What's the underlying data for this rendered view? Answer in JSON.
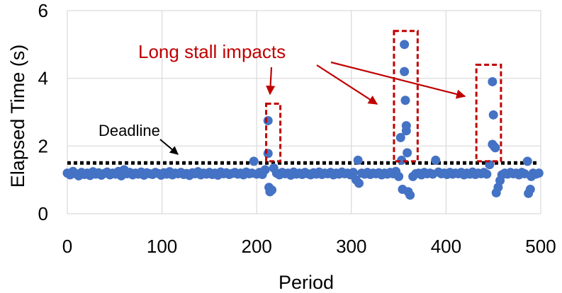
{
  "chart_data": {
    "type": "scatter",
    "title": "",
    "xlabel": "Period",
    "ylabel": "Elapsed Time (s)",
    "xlim": [
      0,
      500
    ],
    "ylim": [
      0,
      6
    ],
    "x_ticks": [
      "0",
      "100",
      "200",
      "300",
      "400",
      "500"
    ],
    "y_ticks": [
      "0",
      "2",
      "4",
      "6"
    ],
    "grid": true,
    "deadline": {
      "label": "Deadline",
      "value": 1.5
    },
    "stall_annotation": {
      "label": "Long stall impacts",
      "regions": [
        [
          210,
          225,
          1.55,
          3.25
        ],
        [
          345,
          370,
          1.55,
          5.4
        ],
        [
          432,
          458,
          1.55,
          4.4
        ]
      ]
    },
    "colors": {
      "points": "#4472c4",
      "annotation": "#c00000",
      "deadline": "#000000",
      "grid": "#d9d9d9"
    },
    "series": [
      {
        "values": [
          [
            0,
            1.2
          ],
          [
            3,
            1.15
          ],
          [
            6,
            1.25
          ],
          [
            9,
            1.18
          ],
          [
            12,
            1.12
          ],
          [
            15,
            1.22
          ],
          [
            18,
            1.16
          ],
          [
            21,
            1.2
          ],
          [
            24,
            1.13
          ],
          [
            27,
            1.24
          ],
          [
            30,
            1.17
          ],
          [
            33,
            1.21
          ],
          [
            36,
            1.14
          ],
          [
            39,
            1.19
          ],
          [
            42,
            1.23
          ],
          [
            45,
            1.15
          ],
          [
            48,
            1.2
          ],
          [
            51,
            1.17
          ],
          [
            54,
            1.25
          ],
          [
            57,
            1.12
          ],
          [
            60,
            1.3
          ],
          [
            63,
            1.18
          ],
          [
            66,
            1.22
          ],
          [
            69,
            1.15
          ],
          [
            72,
            1.2
          ],
          [
            75,
            1.17
          ],
          [
            78,
            1.23
          ],
          [
            81,
            1.14
          ],
          [
            84,
            1.21
          ],
          [
            87,
            1.18
          ],
          [
            90,
            1.16
          ],
          [
            93,
            1.22
          ],
          [
            96,
            1.19
          ],
          [
            99,
            1.14
          ],
          [
            102,
            1.21
          ],
          [
            105,
            1.17
          ],
          [
            108,
            1.24
          ],
          [
            111,
            1.15
          ],
          [
            114,
            1.2
          ],
          [
            117,
            1.18
          ],
          [
            120,
            1.22
          ],
          [
            123,
            1.16
          ],
          [
            126,
            1.19
          ],
          [
            129,
            1.13
          ],
          [
            132,
            1.21
          ],
          [
            135,
            1.18
          ],
          [
            138,
            1.24
          ],
          [
            141,
            1.15
          ],
          [
            144,
            1.2
          ],
          [
            147,
            1.17
          ],
          [
            150,
            1.22
          ],
          [
            153,
            1.16
          ],
          [
            156,
            1.2
          ],
          [
            159,
            1.14
          ],
          [
            162,
            1.23
          ],
          [
            165,
            1.18
          ],
          [
            168,
            1.21
          ],
          [
            171,
            1.16
          ],
          [
            174,
            1.19
          ],
          [
            177,
            1.22
          ],
          [
            180,
            1.17
          ],
          [
            183,
            1.2
          ],
          [
            186,
            1.15
          ],
          [
            189,
            1.23
          ],
          [
            192,
            1.18
          ],
          [
            195,
            1.2
          ],
          [
            197,
            1.55
          ],
          [
            200,
            1.17
          ],
          [
            203,
            1.22
          ],
          [
            206,
            1.16
          ],
          [
            209,
            1.3
          ],
          [
            212,
            2.75
          ],
          [
            212,
            1.78
          ],
          [
            213,
            0.78
          ],
          [
            214,
            0.65
          ],
          [
            216,
            0.7
          ],
          [
            218,
            1.35
          ],
          [
            221,
            1.2
          ],
          [
            224,
            1.15
          ],
          [
            227,
            1.22
          ],
          [
            230,
            1.18
          ],
          [
            233,
            1.2
          ],
          [
            236,
            1.14
          ],
          [
            239,
            1.23
          ],
          [
            242,
            1.17
          ],
          [
            245,
            1.2
          ],
          [
            248,
            1.16
          ],
          [
            251,
            1.22
          ],
          [
            254,
            1.18
          ],
          [
            257,
            1.15
          ],
          [
            260,
            1.21
          ],
          [
            263,
            1.17
          ],
          [
            266,
            1.23
          ],
          [
            269,
            1.16
          ],
          [
            272,
            1.2
          ],
          [
            275,
            1.18
          ],
          [
            278,
            1.22
          ],
          [
            281,
            1.15
          ],
          [
            284,
            1.2
          ],
          [
            287,
            1.17
          ],
          [
            290,
            1.23
          ],
          [
            293,
            1.18
          ],
          [
            296,
            1.2
          ],
          [
            299,
            1.15
          ],
          [
            302,
            1.22
          ],
          [
            305,
            1.0
          ],
          [
            307,
            1.58
          ],
          [
            308,
            0.9
          ],
          [
            311,
            1.2
          ],
          [
            314,
            1.17
          ],
          [
            317,
            1.22
          ],
          [
            320,
            1.16
          ],
          [
            323,
            1.2
          ],
          [
            326,
            1.18
          ],
          [
            329,
            1.21
          ],
          [
            332,
            1.15
          ],
          [
            335,
            1.2
          ],
          [
            338,
            1.17
          ],
          [
            341,
            1.22
          ],
          [
            344,
            1.18
          ],
          [
            347,
            1.25
          ],
          [
            350,
            1.1
          ],
          [
            352,
            2.25
          ],
          [
            353,
            1.58
          ],
          [
            354,
            0.72
          ],
          [
            356,
            5.0
          ],
          [
            356,
            4.2
          ],
          [
            357,
            3.35
          ],
          [
            358,
            2.6
          ],
          [
            358,
            2.45
          ],
          [
            359,
            1.8
          ],
          [
            360,
            0.65
          ],
          [
            362,
            0.55
          ],
          [
            365,
            1.1
          ],
          [
            368,
            1.18
          ],
          [
            371,
            1.2
          ],
          [
            374,
            1.15
          ],
          [
            377,
            1.22
          ],
          [
            380,
            1.18
          ],
          [
            383,
            1.2
          ],
          [
            386,
            1.17
          ],
          [
            389,
            1.58
          ],
          [
            392,
            1.23
          ],
          [
            395,
            1.18
          ],
          [
            398,
            1.2
          ],
          [
            401,
            1.16
          ],
          [
            404,
            1.22
          ],
          [
            407,
            1.17
          ],
          [
            410,
            1.2
          ],
          [
            413,
            1.18
          ],
          [
            416,
            1.22
          ],
          [
            419,
            1.15
          ],
          [
            422,
            1.2
          ],
          [
            425,
            1.17
          ],
          [
            428,
            1.23
          ],
          [
            431,
            1.16
          ],
          [
            434,
            1.2
          ],
          [
            437,
            1.18
          ],
          [
            440,
            1.22
          ],
          [
            443,
            1.17
          ],
          [
            446,
            1.45
          ],
          [
            449,
            3.9
          ],
          [
            450,
            2.92
          ],
          [
            449,
            2.05
          ],
          [
            451,
            1.98
          ],
          [
            452,
            1.95
          ],
          [
            453,
            0.62
          ],
          [
            455,
            0.78
          ],
          [
            457,
            0.98
          ],
          [
            459,
            1.15
          ],
          [
            462,
            1.2
          ],
          [
            465,
            1.17
          ],
          [
            468,
            1.22
          ],
          [
            471,
            1.18
          ],
          [
            474,
            1.2
          ],
          [
            477,
            1.15
          ],
          [
            480,
            1.22
          ],
          [
            483,
            1.18
          ],
          [
            486,
            1.55
          ],
          [
            487,
            0.6
          ],
          [
            489,
            0.72
          ],
          [
            490,
            1.1
          ],
          [
            492,
            1.2
          ],
          [
            495,
            1.17
          ],
          [
            498,
            1.2
          ]
        ]
      }
    ]
  }
}
